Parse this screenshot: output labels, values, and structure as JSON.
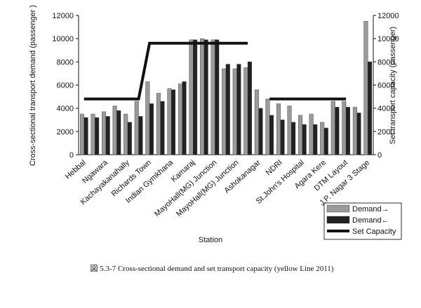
{
  "chart_data": {
    "type": "bar",
    "caption": "図 5.3-7 Cross-sectional demand and set transport capacity (yellow Line 2011)",
    "x_label": "Station",
    "y_label": "Cross-sectional transport demand (passenger )",
    "y2_label": "Set transport capacity (passenger)",
    "categories": [
      "Hebbal",
      null,
      "Ngawara",
      null,
      "Kachayakanahally",
      null,
      "Richards Town",
      null,
      "Indian Gymkhana",
      null,
      "Kamaraj",
      null,
      "MayoHall(MG) Junction",
      null,
      "MayoHall(MG) Junction",
      null,
      "Ashokanagar",
      null,
      "NDRI",
      null,
      "St.John's Hospital",
      null,
      "Agara Kere",
      null,
      "DTM Layout",
      null,
      "J.P. Nagar 3 Stage"
    ],
    "series": [
      {
        "name": "Demand→",
        "color": "#9a9a9a",
        "values": [
          3500,
          3500,
          3700,
          4200,
          3500,
          4600,
          6300,
          5300,
          5700,
          6100,
          9900,
          10000,
          9900,
          7400,
          7400,
          7500,
          5600,
          4800,
          4400,
          4200,
          3400,
          3500,
          2800,
          4600,
          4600,
          4100,
          11500
        ]
      },
      {
        "name": "Demand←",
        "color": "#222222",
        "values": [
          3200,
          3200,
          3300,
          3800,
          2800,
          3300,
          4400,
          4600,
          5600,
          6300,
          9900,
          9900,
          9900,
          7800,
          7800,
          8000,
          4000,
          3400,
          3000,
          2800,
          2600,
          2600,
          2300,
          4100,
          4100,
          3600,
          8000
        ]
      },
      {
        "name": "Set Capacity",
        "color": "#111111",
        "axis": "y2",
        "type": "line",
        "values": [
          4800,
          4800,
          4800,
          4800,
          4800,
          4800,
          9600,
          9600,
          9600,
          9600,
          9600,
          9600,
          9600,
          9600,
          9600,
          9600,
          null,
          4800,
          4800,
          4800,
          4800,
          4800,
          4800,
          4800,
          4800,
          null,
          null
        ]
      }
    ],
    "ylim": [
      0,
      12000
    ],
    "yticks": [
      0,
      2000,
      4000,
      6000,
      8000,
      10000,
      12000
    ],
    "y2lim": [
      0,
      12000
    ],
    "y2ticks": [
      0,
      2000,
      4000,
      6000,
      8000,
      10000,
      12000
    ],
    "grid": false,
    "legend": "lower right"
  }
}
